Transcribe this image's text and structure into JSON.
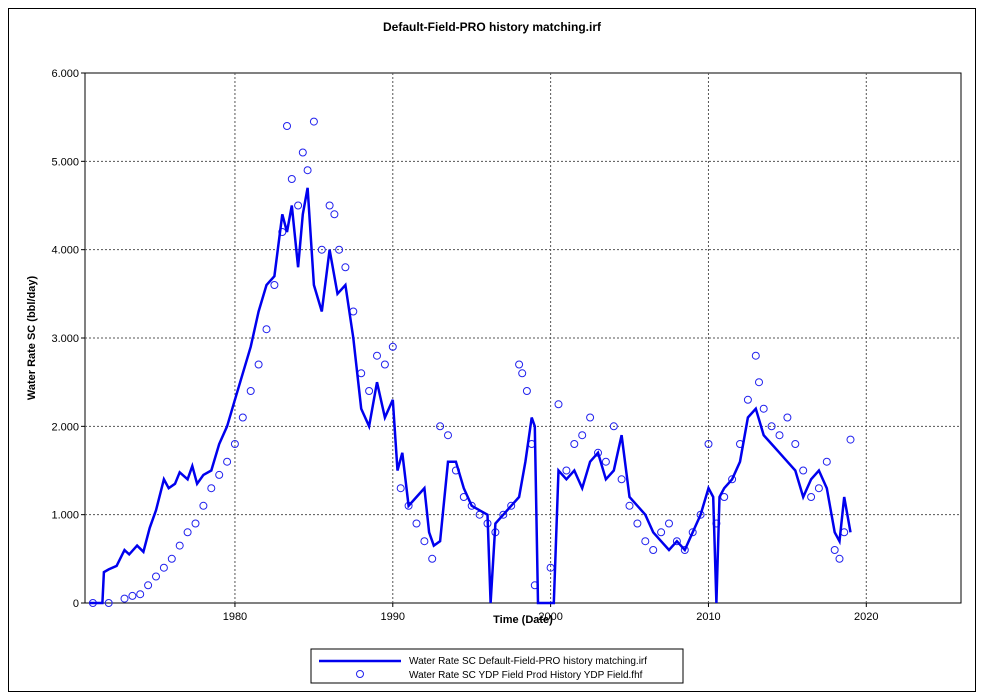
{
  "chart_data": {
    "type": "line",
    "title": "Default-Field-PRO history matching.irf",
    "xlabel": "Time (Date)",
    "ylabel": "Water Rate SC (bbl/day)",
    "xlim": [
      1970.5,
      2026
    ],
    "ylim": [
      0,
      6000
    ],
    "xticks": [
      1980,
      1990,
      2000,
      2010,
      2020
    ],
    "yticks": [
      {
        "v": 0,
        "label": "0"
      },
      {
        "v": 1000,
        "label": "1.000"
      },
      {
        "v": 2000,
        "label": "2.000"
      },
      {
        "v": 3000,
        "label": "3.000"
      },
      {
        "v": 4000,
        "label": "4.000"
      },
      {
        "v": 5000,
        "label": "5.000"
      },
      {
        "v": 6000,
        "label": "6.000"
      }
    ],
    "grid": true,
    "legend_position": "bottom-center",
    "series": [
      {
        "name": "Water Rate SC Default-Field-PRO history matching.irf",
        "kind": "line",
        "color": "#0000ee",
        "x": [
          1970.8,
          1971.6,
          1971.7,
          1972.0,
          1972.5,
          1973.0,
          1973.3,
          1973.8,
          1974.2,
          1974.6,
          1975.0,
          1975.5,
          1975.8,
          1976.2,
          1976.5,
          1977.0,
          1977.3,
          1977.6,
          1978.0,
          1978.5,
          1979.0,
          1979.5,
          1980.0,
          1980.5,
          1981.0,
          1981.5,
          1982.0,
          1982.5,
          1983.0,
          1983.3,
          1983.6,
          1984.0,
          1984.3,
          1984.6,
          1985.0,
          1985.5,
          1986.0,
          1986.5,
          1987.0,
          1987.5,
          1988.0,
          1988.5,
          1989.0,
          1989.5,
          1990.0,
          1990.3,
          1990.6,
          1991.0,
          1991.5,
          1992.0,
          1992.3,
          1992.6,
          1993.0,
          1993.5,
          1994.0,
          1994.5,
          1995.0,
          1995.5,
          1996.0,
          1996.2,
          1996.5,
          1997.0,
          1997.5,
          1998.0,
          1998.4,
          1998.8,
          1999.0,
          1999.2,
          1999.5,
          2000.0,
          2000.2,
          2000.5,
          2001.0,
          2001.5,
          2002.0,
          2002.5,
          2003.0,
          2003.5,
          2004.0,
          2004.5,
          2005.0,
          2005.5,
          2006.0,
          2006.5,
          2007.0,
          2007.5,
          2008.0,
          2008.5,
          2009.0,
          2009.5,
          2010.0,
          2010.3,
          2010.5,
          2010.7,
          2011.0,
          2011.5,
          2012.0,
          2012.5,
          2013.0,
          2013.5,
          2014.0,
          2014.5,
          2015.0,
          2015.5,
          2016.0,
          2016.5,
          2017.0,
          2017.5,
          2018.0,
          2018.3,
          2018.6,
          2019.0
        ],
        "values": [
          0,
          0,
          350,
          380,
          420,
          600,
          550,
          650,
          580,
          850,
          1050,
          1400,
          1300,
          1350,
          1480,
          1400,
          1550,
          1350,
          1450,
          1500,
          1800,
          2000,
          2300,
          2600,
          2900,
          3300,
          3600,
          3700,
          4400,
          4200,
          4500,
          3800,
          4400,
          4700,
          3600,
          3300,
          4000,
          3500,
          3600,
          3000,
          2200,
          2000,
          2500,
          2100,
          2300,
          1500,
          1700,
          1100,
          1200,
          1300,
          800,
          650,
          700,
          1600,
          1600,
          1300,
          1100,
          1050,
          1000,
          0,
          900,
          1000,
          1100,
          1200,
          1600,
          2100,
          2000,
          0,
          0,
          0,
          0,
          1500,
          1400,
          1500,
          1300,
          1600,
          1700,
          1400,
          1500,
          1900,
          1200,
          1100,
          1000,
          800,
          700,
          600,
          700,
          600,
          800,
          1000,
          1300,
          1200,
          0,
          1200,
          1300,
          1400,
          1600,
          2100,
          2200,
          1900,
          1800,
          1700,
          1600,
          1500,
          1200,
          1400,
          1500,
          1300,
          800,
          700,
          1200,
          800
        ]
      },
      {
        "name": "Water Rate SC YDP Field Prod History YDP Field.fhf",
        "kind": "scatter",
        "color": "#2222ee",
        "x": [
          1971.0,
          1972.0,
          1973.0,
          1973.5,
          1974.0,
          1974.5,
          1975.0,
          1975.5,
          1976.0,
          1976.5,
          1977.0,
          1977.5,
          1978.0,
          1978.5,
          1979.0,
          1979.5,
          1980.0,
          1980.5,
          1981.0,
          1981.5,
          1982.0,
          1982.5,
          1983.0,
          1983.3,
          1983.6,
          1984.0,
          1984.3,
          1984.6,
          1985.0,
          1985.5,
          1986.0,
          1986.3,
          1986.6,
          1987.0,
          1987.5,
          1988.0,
          1988.5,
          1989.0,
          1989.5,
          1990.0,
          1990.5,
          1991.0,
          1991.5,
          1992.0,
          1992.5,
          1993.0,
          1993.5,
          1994.0,
          1994.5,
          1995.0,
          1995.5,
          1996.0,
          1996.5,
          1997.0,
          1997.5,
          1998.0,
          1998.2,
          1998.5,
          1998.8,
          1999.0,
          2000.0,
          2000.5,
          2001.0,
          2001.5,
          2002.0,
          2002.5,
          2003.0,
          2003.5,
          2004.0,
          2004.5,
          2005.0,
          2005.5,
          2006.0,
          2006.5,
          2007.0,
          2007.5,
          2008.0,
          2008.5,
          2009.0,
          2009.5,
          2010.0,
          2010.5,
          2011.0,
          2011.5,
          2012.0,
          2012.5,
          2013.0,
          2013.2,
          2013.5,
          2014.0,
          2014.5,
          2015.0,
          2015.5,
          2016.0,
          2016.5,
          2017.0,
          2017.5,
          2018.0,
          2018.3,
          2018.6,
          2019.0
        ],
        "values": [
          0,
          0,
          50,
          80,
          100,
          200,
          300,
          400,
          500,
          650,
          800,
          900,
          1100,
          1300,
          1450,
          1600,
          1800,
          2100,
          2400,
          2700,
          3100,
          3600,
          4200,
          5400,
          4800,
          4500,
          5100,
          4900,
          5450,
          4000,
          4500,
          4400,
          4000,
          3800,
          3300,
          2600,
          2400,
          2800,
          2700,
          2900,
          1300,
          1100,
          900,
          700,
          500,
          2000,
          1900,
          1500,
          1200,
          1100,
          1000,
          900,
          800,
          1000,
          1100,
          2700,
          2600,
          2400,
          1800,
          200,
          400,
          2250,
          1500,
          1800,
          1900,
          2100,
          1700,
          1600,
          2000,
          1400,
          1100,
          900,
          700,
          600,
          800,
          900,
          700,
          600,
          800,
          1000,
          1800,
          900,
          1200,
          1400,
          1800,
          2300,
          2800,
          2500,
          2200,
          2000,
          1900,
          2100,
          1800,
          1500,
          1200,
          1300,
          1600,
          600,
          500,
          800,
          1850
        ]
      }
    ]
  }
}
